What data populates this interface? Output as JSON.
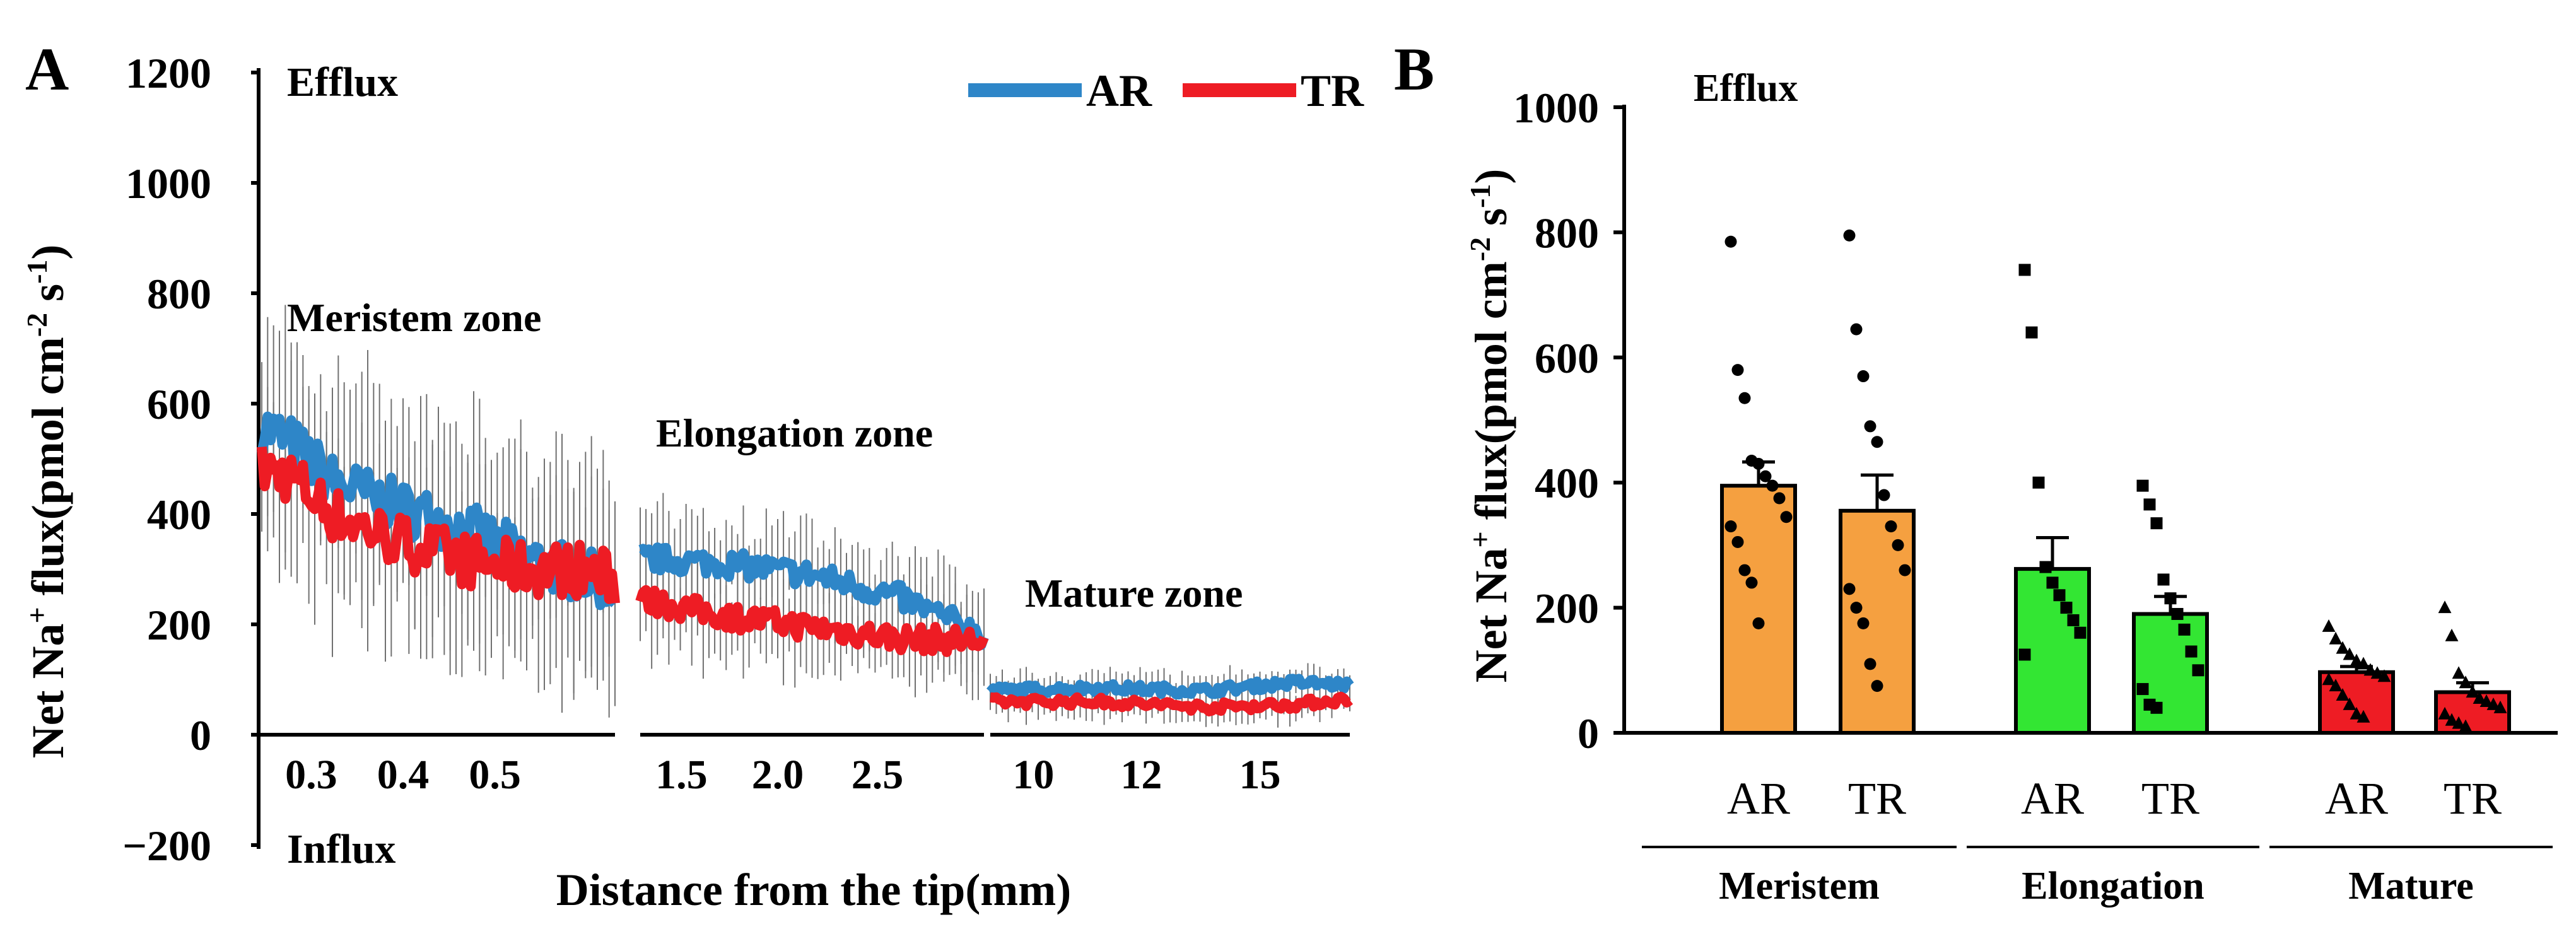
{
  "chart_data": [
    {
      "type": "line",
      "panel_label": "A",
      "ylabel_parts": {
        "a": "Net Na",
        "sup1": "+",
        "b": " flux(pmol cm",
        "sup2": "-2",
        "c": " s",
        "sup3": "-1",
        "d": ")"
      },
      "xlabel": "Distance from the tip(mm)",
      "ylim": [
        -200,
        1200
      ],
      "yticks": [
        "−200",
        "0",
        "200",
        "400",
        "600",
        "800",
        "1000",
        "1200"
      ],
      "ytick_values": [
        -200,
        0,
        200,
        400,
        600,
        800,
        1000,
        1200
      ],
      "top_note": "Efflux",
      "bottom_note": "Influx",
      "legend": [
        "AR",
        "TR"
      ],
      "legend_position": "top-right",
      "colors": {
        "AR": "#2e86c8",
        "TR": "#ee1c24",
        "error": "#707070"
      },
      "segments": [
        {
          "zone": "Meristem zone",
          "xticks": [
            "0.3",
            "0.4",
            "0.5"
          ],
          "xtick_positions": [
            0.14,
            0.4,
            0.66
          ],
          "AR_knots": [
            [
              0,
              560
            ],
            [
              0.08,
              530
            ],
            [
              0.2,
              460
            ],
            [
              0.35,
              420
            ],
            [
              0.5,
              390
            ],
            [
              0.62,
              360
            ],
            [
              0.75,
              320
            ],
            [
              0.9,
              290
            ],
            [
              1,
              270
            ]
          ],
          "TR_knots": [
            [
              0,
              480
            ],
            [
              0.08,
              470
            ],
            [
              0.2,
              400
            ],
            [
              0.35,
              360
            ],
            [
              0.5,
              330
            ],
            [
              0.62,
              310
            ],
            [
              0.75,
              300
            ],
            [
              0.9,
              300
            ],
            [
              1,
              280
            ]
          ],
          "err": 180
        },
        {
          "zone": "Elongation zone",
          "xticks": [
            "1.5",
            "2.0",
            "2.5"
          ],
          "xtick_positions": [
            0.12,
            0.4,
            0.69
          ],
          "AR_knots": [
            [
              0,
              320
            ],
            [
              0.25,
              310
            ],
            [
              0.5,
              290
            ],
            [
              0.75,
              250
            ],
            [
              1,
              180
            ]
          ],
          "TR_knots": [
            [
              0,
              245
            ],
            [
              0.25,
              215
            ],
            [
              0.5,
              195
            ],
            [
              0.75,
              175
            ],
            [
              1,
              170
            ]
          ],
          "err": 85
        },
        {
          "zone": "Mature zone",
          "xticks": [
            "10",
            "12",
            "15"
          ],
          "xtick_positions": [
            0.12,
            0.42,
            0.75
          ],
          "AR_knots": [
            [
              0,
              80
            ],
            [
              0.3,
              85
            ],
            [
              0.6,
              80
            ],
            [
              0.85,
              95
            ],
            [
              1,
              90
            ]
          ],
          "TR_knots": [
            [
              0,
              60
            ],
            [
              0.3,
              60
            ],
            [
              0.6,
              50
            ],
            [
              0.85,
              55
            ],
            [
              1,
              65
            ]
          ],
          "err": 30
        }
      ]
    },
    {
      "type": "bar",
      "panel_label": "B",
      "ylabel_parts": {
        "a": "Net Na",
        "sup1": "+",
        "b": " flux(pmol cm",
        "sup2": "-2",
        "c": " s",
        "sup3": "-1",
        "d": ")"
      },
      "ylim": [
        0,
        1000
      ],
      "yticks": [
        "0",
        "200",
        "400",
        "600",
        "800",
        "1000"
      ],
      "ytick_values": [
        0,
        200,
        400,
        600,
        800,
        1000
      ],
      "top_note": "Efflux",
      "groups": [
        {
          "name": "Meristem",
          "color": "#f5a040",
          "marker": "circle",
          "bars": [
            {
              "label": "AR",
              "value": 395,
              "sem": 38,
              "points": [
                785,
                580,
                535,
                435,
                430,
                410,
                395,
                375,
                345,
                330,
                305,
                260,
                240,
                175
              ]
            },
            {
              "label": "TR",
              "value": 355,
              "sem": 57,
              "points": [
                795,
                645,
                570,
                490,
                465,
                380,
                330,
                300,
                260,
                230,
                200,
                175,
                110,
                75
              ]
            }
          ]
        },
        {
          "name": "Elongation",
          "color": "#33e633",
          "marker": "square",
          "bars": [
            {
              "label": "AR",
              "value": 262,
              "sem": 50,
              "points": [
                740,
                640,
                400,
                265,
                240,
                220,
                200,
                180,
                160,
                125
              ]
            },
            {
              "label": "TR",
              "value": 190,
              "sem": 28,
              "points": [
                395,
                365,
                335,
                245,
                215,
                190,
                165,
                130,
                100,
                70,
                45,
                40
              ]
            }
          ]
        },
        {
          "name": "Mature",
          "color": "#ee1c24",
          "marker": "triangle",
          "bars": [
            {
              "label": "AR",
              "value": 97,
              "sem": 9,
              "points": [
                170,
                150,
                135,
                125,
                115,
                110,
                100,
                95,
                90,
                85,
                75,
                60,
                45,
                30,
                25
              ]
            },
            {
              "label": "TR",
              "value": 65,
              "sem": 15,
              "points": [
                200,
                155,
                95,
                80,
                65,
                55,
                50,
                45,
                40,
                30,
                20,
                15,
                10
              ]
            }
          ]
        }
      ]
    }
  ]
}
